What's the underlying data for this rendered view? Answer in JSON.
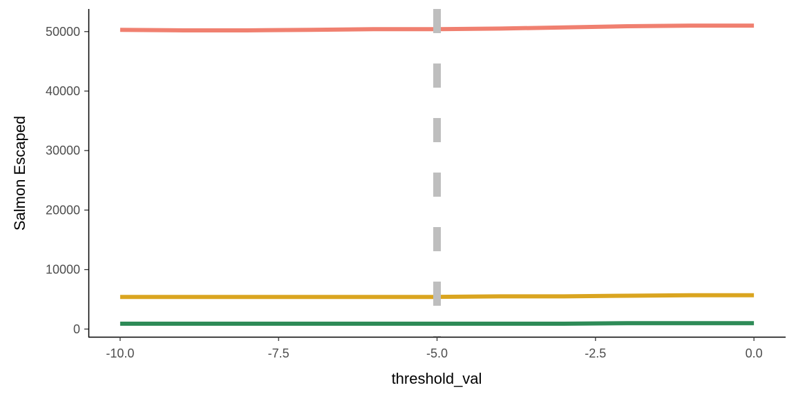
{
  "chart_data": {
    "type": "line",
    "title": "",
    "xlabel": "threshold_val",
    "ylabel": "Salmon Escaped",
    "xlim": [
      -10.5,
      0.5
    ],
    "ylim": [
      -1300,
      53800
    ],
    "x_ticks": [
      -10.0,
      -7.5,
      -5.0,
      -2.5,
      0.0
    ],
    "x_tick_labels": [
      "-10.0",
      "-7.5",
      "-5.0",
      "-2.5",
      "0.0"
    ],
    "y_ticks": [
      0,
      10000,
      20000,
      30000,
      40000,
      50000
    ],
    "y_tick_labels": [
      "0",
      "10000",
      "20000",
      "30000",
      "40000",
      "50000"
    ],
    "grid": false,
    "legend": "none",
    "reference_line": {
      "x": -5.0,
      "color": "#bebebe",
      "style": "dashed"
    },
    "series": [
      {
        "color": "#f08070",
        "x": [
          -10,
          -9,
          -8,
          -7,
          -6,
          -5,
          -4,
          -3,
          -2,
          -1,
          0
        ],
        "y": [
          50300,
          50200,
          50200,
          50300,
          50400,
          50400,
          50500,
          50700,
          50900,
          51000,
          51000
        ]
      },
      {
        "color": "#daa520",
        "x": [
          -10,
          -9,
          -8,
          -7,
          -6,
          -5,
          -4,
          -3,
          -2,
          -1,
          0
        ],
        "y": [
          5400,
          5400,
          5400,
          5400,
          5400,
          5400,
          5500,
          5500,
          5600,
          5700,
          5700
        ]
      },
      {
        "color": "#2e8b57",
        "x": [
          -10,
          -9,
          -8,
          -7,
          -6,
          -5,
          -4,
          -3,
          -2,
          -1,
          0
        ],
        "y": [
          900,
          900,
          900,
          900,
          900,
          900,
          900,
          900,
          1000,
          1000,
          1000
        ]
      }
    ]
  }
}
